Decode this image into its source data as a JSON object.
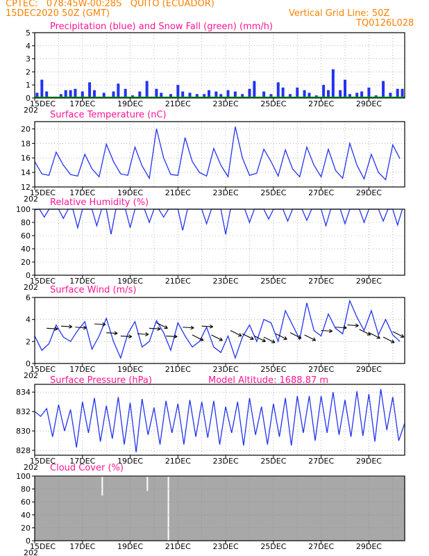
{
  "header": {
    "line1": "CPTEC:   078:45W-00:28S   QUITO (ECUADOR)",
    "line2": "15DEC2020 50Z (GMT)",
    "right1": "Vertical Grid Line: 50Z",
    "right2": "TQ0126L028"
  },
  "colors": {
    "series": "#2233ee",
    "snow": "#00aa00",
    "cloud": "#a8a8a8",
    "title": "#ff1493",
    "header": "#ff8000"
  },
  "x_ticks": [
    "15DEC",
    "17DEC",
    "19DEC",
    "21DEC",
    "23DEC",
    "25DEC",
    "27DEC",
    "29DEC"
  ],
  "year_stub": "202",
  "chart_data": [
    {
      "type": "bar",
      "title": "Precipitation (blue) and Snow Fall (green) (mm/h)",
      "ylim": [
        0,
        5
      ],
      "yticks": [
        0,
        1,
        2,
        3,
        4,
        5
      ],
      "series": [
        {
          "name": "Precipitation",
          "x_days": [
            0.1,
            0.3,
            0.5,
            1.1,
            1.3,
            1.5,
            1.7,
            2.0,
            2.3,
            2.5,
            2.9,
            3.3,
            3.5,
            3.8,
            4.1,
            4.4,
            4.7,
            5.1,
            5.3,
            5.7,
            6.0,
            6.2,
            6.5,
            6.8,
            7.1,
            7.3,
            7.6,
            7.8,
            8.1,
            8.4,
            8.7,
            9.0,
            9.2,
            9.6,
            9.9,
            10.2,
            10.4,
            10.7,
            11.0,
            11.3,
            11.5,
            11.8,
            12.1,
            12.3,
            12.5,
            12.8,
            13.0,
            13.2,
            13.5,
            13.7,
            14.0,
            14.3,
            14.6,
            14.9,
            15.2,
            15.4
          ],
          "values": [
            0.4,
            1.4,
            0.5,
            0.3,
            0.6,
            0.6,
            0.7,
            0.5,
            1.2,
            0.6,
            0.4,
            0.5,
            1.1,
            0.7,
            0.2,
            0.5,
            1.3,
            0.7,
            0.4,
            0.3,
            1.0,
            0.5,
            0.4,
            0.3,
            0.3,
            0.6,
            0.5,
            0.3,
            0.6,
            0.5,
            0.3,
            0.7,
            1.3,
            0.5,
            0.3,
            1.2,
            0.8,
            0.3,
            0.8,
            0.6,
            0.4,
            0.2,
            1.0,
            0.6,
            2.2,
            0.6,
            1.4,
            0.3,
            0.4,
            0.5,
            0.8,
            0.2,
            1.3,
            0.4,
            0.7,
            0.7
          ]
        },
        {
          "name": "Snow Fall",
          "values": [
            0
          ]
        }
      ]
    },
    {
      "type": "line",
      "title": "Surface Temperature (nC)",
      "ylim": [
        12,
        21
      ],
      "yticks": [
        12,
        14,
        16,
        18,
        20
      ],
      "x_days": [
        0,
        0.3,
        0.6,
        0.9,
        1.2,
        1.5,
        1.8,
        2.1,
        2.4,
        2.7,
        3.0,
        3.3,
        3.6,
        3.9,
        4.2,
        4.5,
        4.8,
        5.1,
        5.4,
        5.7,
        6.0,
        6.3,
        6.6,
        6.9,
        7.2,
        7.5,
        7.8,
        8.1,
        8.4,
        8.7,
        9.0,
        9.3,
        9.6,
        9.9,
        10.2,
        10.5,
        10.8,
        11.1,
        11.4,
        11.7,
        12.0,
        12.3,
        12.6,
        12.9,
        13.2,
        13.5,
        13.8,
        14.1,
        14.4,
        14.7,
        15.0,
        15.3
      ],
      "values": [
        15.5,
        13.8,
        13.6,
        16.8,
        15.0,
        13.7,
        13.5,
        16.5,
        14.5,
        13.4,
        17.9,
        15.5,
        13.8,
        13.6,
        17.5,
        14.9,
        13.2,
        20.0,
        16.0,
        13.7,
        13.6,
        18.8,
        15.5,
        14.0,
        13.5,
        17.3,
        15.0,
        13.4,
        20.3,
        16.0,
        13.6,
        13.9,
        17.2,
        15.5,
        13.5,
        17.1,
        14.5,
        13.4,
        17.5,
        15.0,
        13.4,
        17.2,
        14.3,
        13.2,
        18.0,
        15.0,
        13.1,
        16.5,
        14.0,
        13.0,
        17.8,
        15.9
      ]
    },
    {
      "type": "line",
      "title": "Relative Humidity (%)",
      "ylim": [
        0,
        100
      ],
      "yticks": [
        0,
        20,
        40,
        60,
        80,
        100
      ],
      "x_days": [
        0,
        0.2,
        0.4,
        0.6,
        0.8,
        1.0,
        1.2,
        1.4,
        1.6,
        1.8,
        2.0,
        2.2,
        2.4,
        2.6,
        2.8,
        3.0,
        3.2,
        3.4,
        3.6,
        3.8,
        4.0,
        4.2,
        4.4,
        4.6,
        4.8,
        5.0,
        5.2,
        5.4,
        5.6,
        5.8,
        6.0,
        6.2,
        6.4,
        6.6,
        6.8,
        7.0,
        7.2,
        7.4,
        7.6,
        7.8,
        8.0,
        8.2,
        8.4,
        8.6,
        8.8,
        9.0,
        9.2,
        9.4,
        9.6,
        9.8,
        10.0,
        10.2,
        10.4,
        10.6,
        10.8,
        11.0,
        11.2,
        11.4,
        11.6,
        11.8,
        12.0,
        12.2,
        12.4,
        12.6,
        12.8,
        13.0,
        13.2,
        13.4,
        13.6,
        13.8,
        14.0,
        14.2,
        14.4,
        14.6,
        14.8,
        15.0,
        15.2,
        15.4
      ],
      "values": [
        99,
        100,
        88,
        100,
        100,
        100,
        86,
        100,
        100,
        72,
        100,
        100,
        100,
        75,
        100,
        100,
        62,
        100,
        100,
        100,
        72,
        100,
        100,
        100,
        80,
        100,
        100,
        88,
        100,
        100,
        100,
        68,
        100,
        100,
        100,
        100,
        78,
        100,
        100,
        100,
        62,
        100,
        100,
        100,
        100,
        80,
        100,
        100,
        100,
        85,
        100,
        100,
        100,
        82,
        100,
        100,
        100,
        83,
        100,
        100,
        100,
        75,
        100,
        100,
        100,
        78,
        100,
        100,
        100,
        80,
        100,
        100,
        100,
        82,
        100,
        100,
        76,
        100
      ]
    },
    {
      "type": "line",
      "title": "Surface Wind (m/s)",
      "ylim": [
        0,
        6
      ],
      "yticks": [
        0,
        2,
        4,
        6
      ],
      "x_days": [
        0,
        0.3,
        0.6,
        0.9,
        1.2,
        1.5,
        1.8,
        2.1,
        2.4,
        2.7,
        3.0,
        3.3,
        3.6,
        3.9,
        4.2,
        4.5,
        4.8,
        5.1,
        5.4,
        5.7,
        6.0,
        6.3,
        6.6,
        6.9,
        7.2,
        7.5,
        7.8,
        8.1,
        8.4,
        8.7,
        9.0,
        9.3,
        9.6,
        9.9,
        10.2,
        10.5,
        10.8,
        11.1,
        11.4,
        11.7,
        12.0,
        12.3,
        12.6,
        12.9,
        13.2,
        13.5,
        13.8,
        14.1,
        14.4,
        14.7,
        15.0,
        15.3
      ],
      "values": [
        2.5,
        1.2,
        1.8,
        3.5,
        2.4,
        2.0,
        3.0,
        3.8,
        1.3,
        2.5,
        4.1,
        2.0,
        0.5,
        2.7,
        3.8,
        1.5,
        2.0,
        3.9,
        2.8,
        1.2,
        3.7,
        2.5,
        1.5,
        2.0,
        3.3,
        1.5,
        1.0,
        2.5,
        0.5,
        2.4,
        3.5,
        2.0,
        4.0,
        3.7,
        2.0,
        4.8,
        3.5,
        2.2,
        5.5,
        3.0,
        2.5,
        4.5,
        3.2,
        2.7,
        5.7,
        4.2,
        3.0,
        4.8,
        2.6,
        4.0,
        2.6,
        2.0
      ],
      "vectors": [
        {
          "x_day": 0.5,
          "y": 3.2,
          "dir": "E"
        },
        {
          "x_day": 1.1,
          "y": 3.4,
          "dir": "E"
        },
        {
          "x_day": 1.7,
          "y": 3.3,
          "dir": "E"
        },
        {
          "x_day": 2.5,
          "y": 3.6,
          "dir": "E"
        },
        {
          "x_day": 3.0,
          "y": 2.8,
          "dir": "E"
        },
        {
          "x_day": 3.6,
          "y": 2.5,
          "dir": "E"
        },
        {
          "x_day": 4.3,
          "y": 2.7,
          "dir": "E"
        },
        {
          "x_day": 4.8,
          "y": 3.2,
          "dir": "E"
        },
        {
          "x_day": 5.1,
          "y": 3.7,
          "dir": "SE"
        },
        {
          "x_day": 5.5,
          "y": 2.5,
          "dir": "E"
        },
        {
          "x_day": 6.2,
          "y": 3.3,
          "dir": "E"
        },
        {
          "x_day": 6.6,
          "y": 2.6,
          "dir": "SE"
        },
        {
          "x_day": 7.0,
          "y": 3.4,
          "dir": "E"
        },
        {
          "x_day": 7.4,
          "y": 2.6,
          "dir": "SE"
        },
        {
          "x_day": 8.2,
          "y": 3.0,
          "dir": "SE"
        },
        {
          "x_day": 8.7,
          "y": 2.7,
          "dir": "SE"
        },
        {
          "x_day": 9.2,
          "y": 2.5,
          "dir": "SE"
        },
        {
          "x_day": 9.6,
          "y": 2.4,
          "dir": "SE"
        },
        {
          "x_day": 10.1,
          "y": 2.7,
          "dir": "SE"
        },
        {
          "x_day": 10.7,
          "y": 2.8,
          "dir": "SE"
        },
        {
          "x_day": 11.3,
          "y": 2.6,
          "dir": "SE"
        },
        {
          "x_day": 12.0,
          "y": 3.0,
          "dir": "E"
        },
        {
          "x_day": 12.6,
          "y": 3.3,
          "dir": "E"
        },
        {
          "x_day": 13.1,
          "y": 3.5,
          "dir": "E"
        },
        {
          "x_day": 13.6,
          "y": 3.1,
          "dir": "SE"
        },
        {
          "x_day": 14.0,
          "y": 2.8,
          "dir": "SE"
        },
        {
          "x_day": 14.6,
          "y": 2.4,
          "dir": "SE"
        },
        {
          "x_day": 15.0,
          "y": 2.9,
          "dir": "SE"
        }
      ]
    },
    {
      "type": "line",
      "title": "Surface Pressure (hPa)",
      "annotation": "Model Altitude: 1688.87 m",
      "ylim": [
        827.5,
        834.8
      ],
      "yticks": [
        828,
        830,
        832,
        834
      ],
      "x_days": [
        0,
        0.25,
        0.5,
        0.75,
        1.0,
        1.25,
        1.5,
        1.75,
        2.0,
        2.25,
        2.5,
        2.75,
        3.0,
        3.25,
        3.5,
        3.75,
        4.0,
        4.25,
        4.5,
        4.75,
        5.0,
        5.25,
        5.5,
        5.75,
        6.0,
        6.25,
        6.5,
        6.75,
        7.0,
        7.25,
        7.5,
        7.75,
        8.0,
        8.25,
        8.5,
        8.75,
        9.0,
        9.25,
        9.5,
        9.75,
        10.0,
        10.25,
        10.5,
        10.75,
        11.0,
        11.25,
        11.5,
        11.75,
        12.0,
        12.25,
        12.5,
        12.75,
        13.0,
        13.25,
        13.5,
        13.75,
        14.0,
        14.25,
        14.5,
        14.75,
        15.0,
        15.25,
        15.5
      ],
      "values": [
        832.0,
        831.5,
        832.3,
        829.4,
        832.7,
        830.0,
        832.2,
        828.3,
        833.0,
        829.8,
        833.4,
        828.9,
        832.6,
        829.2,
        833.5,
        828.6,
        832.9,
        827.8,
        833.3,
        829.6,
        832.4,
        828.6,
        833.1,
        829.8,
        832.8,
        828.6,
        833.2,
        829.4,
        833.0,
        829.3,
        833.1,
        828.6,
        832.5,
        829.8,
        833.0,
        828.5,
        833.4,
        829.6,
        832.5,
        828.6,
        832.8,
        829.4,
        833.4,
        828.5,
        833.6,
        829.8,
        833.6,
        829.0,
        833.6,
        829.8,
        834.0,
        829.6,
        833.2,
        829.4,
        834.1,
        829.5,
        833.8,
        828.9,
        834.3,
        830.1,
        833.5,
        829.0,
        830.8
      ]
    },
    {
      "type": "area",
      "title": "Cloud Cover (%)",
      "ylim": [
        0,
        100
      ],
      "yticks": [
        0,
        20,
        40,
        60,
        80,
        100
      ],
      "baseline_value": 99,
      "dips": [
        {
          "x_day": 2.83,
          "value": 70
        },
        {
          "x_day": 4.72,
          "value": 77
        },
        {
          "x_day": 5.6,
          "value": 0
        }
      ]
    }
  ]
}
